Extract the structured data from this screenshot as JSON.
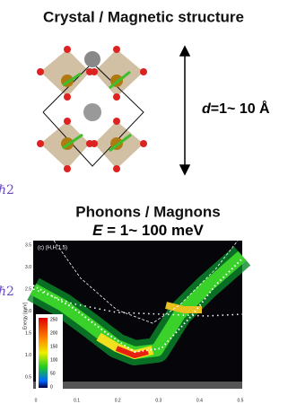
{
  "top_panel": {
    "title": "Crystal / Magnetic structure",
    "length_label": {
      "symbol": "d",
      "text": "=1~ 10 Å"
    }
  },
  "side_fragments": [
    "ℏ2",
    "ℏ2"
  ],
  "bottom_panel": {
    "title": "Phonons / Magnons",
    "energy_label": {
      "symbol": "E",
      "text": " = 1~ 100 meV"
    },
    "plot": {
      "panel_label": "(c) (H,H,1.5)",
      "y_label": "Energy [meV]",
      "y_tick_labels": [
        "3.5",
        "3.0",
        "2.5",
        "2.0",
        "1.5",
        "1.0",
        "0.5"
      ],
      "x_tick_labels": [
        "0",
        "0.1",
        "0.2",
        "0.3",
        "0.4",
        "0.5"
      ],
      "colorbar_labels": [
        "250",
        "200",
        "150",
        "100",
        "50",
        "0"
      ]
    }
  }
}
